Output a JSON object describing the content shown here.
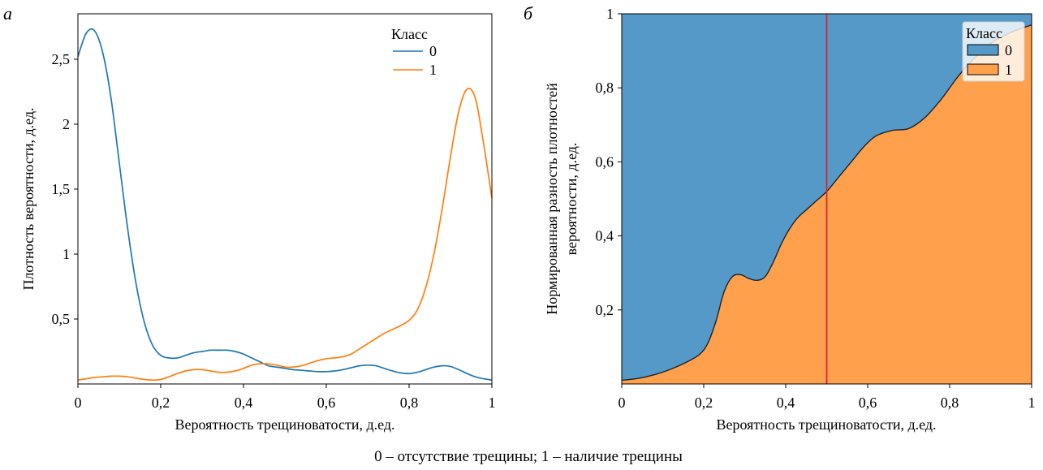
{
  "caption": "0 – отсутствие трещины; 1 – наличие трещины",
  "colors": {
    "class0": "#1f77b4",
    "class1": "#ff7f0e",
    "fill0": "#5599c8",
    "fill1": "#ffa04d",
    "threshold": "#d62728"
  },
  "chart_data": [
    {
      "panel": "а",
      "type": "line",
      "title": "",
      "xlabel": "Вероятность трещиноватости, д.ед.",
      "ylabel": "Плотность вероятности, д.ед.",
      "xlim": [
        0,
        1
      ],
      "ylim": [
        0,
        2.85
      ],
      "xticks": [
        0,
        0.2,
        0.4,
        0.6,
        0.8,
        1
      ],
      "xtick_labels": [
        "0",
        "0,2",
        "0,4",
        "0,6",
        "0,8",
        "1"
      ],
      "yticks": [
        0.5,
        1,
        1.5,
        2,
        2.5
      ],
      "ytick_labels": [
        "0,5",
        "1",
        "1,5",
        "2",
        "2,5"
      ],
      "legend": {
        "title": "Класс",
        "position": "top-right",
        "entries": [
          "0",
          "1"
        ]
      },
      "x": [
        0,
        0.02,
        0.04,
        0.06,
        0.08,
        0.1,
        0.12,
        0.14,
        0.16,
        0.18,
        0.2,
        0.22,
        0.24,
        0.26,
        0.28,
        0.3,
        0.32,
        0.34,
        0.36,
        0.38,
        0.4,
        0.42,
        0.44,
        0.46,
        0.48,
        0.5,
        0.52,
        0.54,
        0.56,
        0.58,
        0.6,
        0.62,
        0.64,
        0.66,
        0.68,
        0.7,
        0.72,
        0.74,
        0.76,
        0.78,
        0.8,
        0.82,
        0.84,
        0.86,
        0.88,
        0.9,
        0.92,
        0.94,
        0.96,
        0.98,
        1.0
      ],
      "series": [
        {
          "name": "0",
          "values": [
            2.52,
            2.7,
            2.72,
            2.55,
            2.2,
            1.7,
            1.2,
            0.78,
            0.48,
            0.3,
            0.22,
            0.2,
            0.2,
            0.22,
            0.24,
            0.25,
            0.26,
            0.26,
            0.26,
            0.25,
            0.23,
            0.2,
            0.17,
            0.14,
            0.13,
            0.12,
            0.11,
            0.105,
            0.1,
            0.095,
            0.095,
            0.1,
            0.11,
            0.125,
            0.14,
            0.145,
            0.14,
            0.12,
            0.1,
            0.085,
            0.08,
            0.09,
            0.11,
            0.13,
            0.14,
            0.135,
            0.11,
            0.08,
            0.055,
            0.04,
            0.03
          ]
        },
        {
          "name": "1",
          "values": [
            0.03,
            0.04,
            0.05,
            0.055,
            0.06,
            0.06,
            0.055,
            0.045,
            0.035,
            0.03,
            0.035,
            0.055,
            0.08,
            0.1,
            0.11,
            0.11,
            0.1,
            0.09,
            0.09,
            0.1,
            0.12,
            0.145,
            0.155,
            0.155,
            0.145,
            0.13,
            0.13,
            0.14,
            0.16,
            0.18,
            0.195,
            0.2,
            0.21,
            0.23,
            0.27,
            0.31,
            0.35,
            0.39,
            0.42,
            0.45,
            0.49,
            0.57,
            0.74,
            1.0,
            1.35,
            1.75,
            2.1,
            2.27,
            2.2,
            1.85,
            1.43
          ]
        }
      ]
    },
    {
      "panel": "б",
      "type": "area",
      "title": "",
      "xlabel": "Вероятность трещиноватости, д.ед.",
      "ylabel": "Нормированная разность плотностей вероятности, д.ед.",
      "ylabel_lines": [
        "Нормированная разность плотностей",
        "вероятности, д.ед."
      ],
      "xlim": [
        0,
        1
      ],
      "ylim": [
        0,
        1
      ],
      "xticks": [
        0,
        0.2,
        0.4,
        0.6,
        0.8,
        1
      ],
      "xtick_labels": [
        "0",
        "0,2",
        "0,4",
        "0,6",
        "0,8",
        "1"
      ],
      "yticks": [
        0.2,
        0.4,
        0.6,
        0.8,
        1
      ],
      "ytick_labels": [
        "0,2",
        "0,4",
        "0,6",
        "0,8",
        "1"
      ],
      "legend": {
        "title": "Класс",
        "position": "top-right",
        "entries": [
          "0",
          "1"
        ]
      },
      "threshold_x": 0.5,
      "x": [
        0,
        0.04,
        0.08,
        0.12,
        0.16,
        0.19,
        0.21,
        0.23,
        0.25,
        0.27,
        0.29,
        0.31,
        0.33,
        0.35,
        0.37,
        0.39,
        0.41,
        0.43,
        0.45,
        0.47,
        0.5,
        0.53,
        0.56,
        0.59,
        0.62,
        0.66,
        0.7,
        0.74,
        0.78,
        0.82,
        0.86,
        0.9,
        0.95,
        1.0
      ],
      "boundary": [
        0.01,
        0.015,
        0.025,
        0.04,
        0.06,
        0.08,
        0.11,
        0.17,
        0.25,
        0.29,
        0.295,
        0.285,
        0.28,
        0.29,
        0.33,
        0.38,
        0.42,
        0.45,
        0.47,
        0.49,
        0.52,
        0.56,
        0.6,
        0.64,
        0.67,
        0.685,
        0.69,
        0.72,
        0.77,
        0.83,
        0.88,
        0.92,
        0.95,
        0.97
      ]
    }
  ]
}
